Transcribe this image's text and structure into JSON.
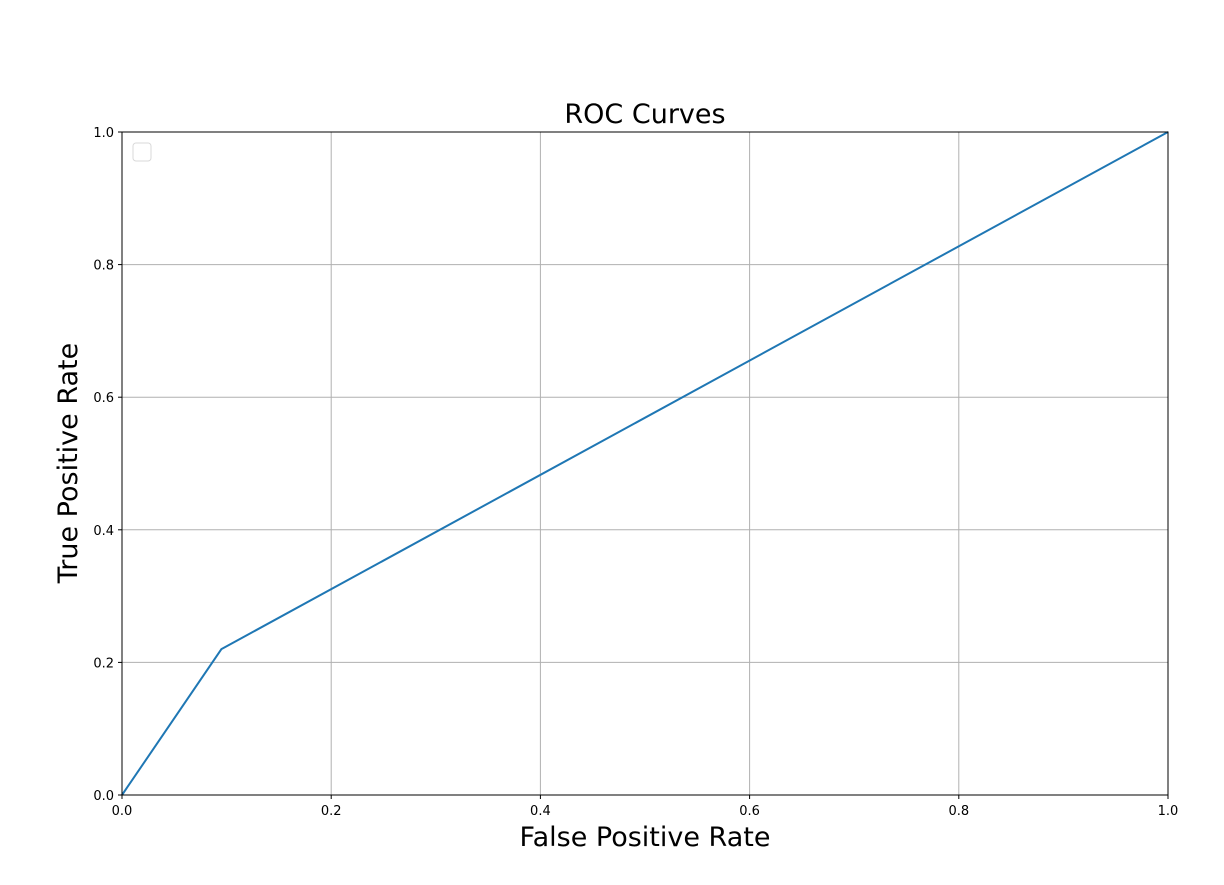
{
  "chart_data": {
    "type": "line",
    "title": "ROC Curves",
    "xlabel": "False Positive Rate",
    "ylabel": "True Positive Rate",
    "xlim": [
      0.0,
      1.0
    ],
    "ylim": [
      0.0,
      1.0
    ],
    "x_ticks": [
      "0.0",
      "0.2",
      "0.4",
      "0.6",
      "0.8",
      "1.0"
    ],
    "y_ticks": [
      "0.0",
      "0.2",
      "0.4",
      "0.6",
      "0.8",
      "1.0"
    ],
    "grid": true,
    "legend": {
      "placement": "upper-left",
      "entries": []
    },
    "series": [
      {
        "x": [
          0.0,
          0.095,
          1.0
        ],
        "y": [
          0.0,
          0.22,
          1.0
        ],
        "color": "#1f77b4"
      }
    ]
  }
}
